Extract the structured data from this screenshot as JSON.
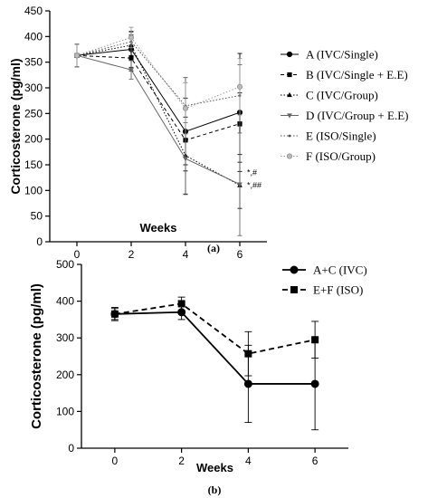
{
  "chart_data": [
    {
      "type": "line",
      "caption": "(a)",
      "xlabel": "Weeks",
      "ylabel": "Corticosterone (pg/ml)",
      "x": [
        0,
        2,
        4,
        6
      ],
      "xlim": [
        -1,
        7
      ],
      "ylim": [
        0,
        450
      ],
      "xticks": [
        "0",
        "2",
        "4",
        "6"
      ],
      "yticks": [
        "0",
        "50",
        "100",
        "150",
        "200",
        "250",
        "300",
        "350",
        "400",
        "450"
      ],
      "grid": false,
      "legend_position": "right",
      "series": [
        {
          "name": "A (IVC/Single)",
          "values": [
            363,
            375,
            215,
            252
          ],
          "err": [
            22,
            35,
            65,
            115
          ],
          "color": "#000000",
          "dash": "",
          "marker": "circle"
        },
        {
          "name": "B (IVC/Single + E.E)",
          "values": [
            363,
            358,
            198,
            230
          ],
          "err": [
            22,
            25,
            60,
            60
          ],
          "color": "#000000",
          "dash": "4,3",
          "marker": "square"
        },
        {
          "name": "C (IVC/Group)",
          "values": [
            363,
            383,
            168,
            110
          ],
          "err": [
            22,
            20,
            75,
            45
          ],
          "color": "#000000",
          "dash": "1.5,2",
          "marker": "triangle"
        },
        {
          "name": "D (IVC/Group + E.E)",
          "values": [
            363,
            335,
            162,
            112
          ],
          "err": [
            22,
            18,
            70,
            100
          ],
          "color": "#666666",
          "dash": "",
          "marker": "triangle-down"
        },
        {
          "name": "E (ISO/Single)",
          "values": [
            363,
            390,
            265,
            285
          ],
          "err": [
            22,
            18,
            55,
            60
          ],
          "color": "#555555",
          "dash": "1.5,2",
          "marker": "dot"
        },
        {
          "name": "F (ISO/Group)",
          "values": [
            363,
            398,
            260,
            302
          ],
          "err": [
            22,
            20,
            50,
            55
          ],
          "color": "#999999",
          "dash": "1.5,2",
          "marker": "circle-open"
        }
      ],
      "annotations": [
        {
          "text": "*,#",
          "x": 6,
          "y": 135
        },
        {
          "text": "*,##",
          "x": 6,
          "y": 110
        }
      ]
    },
    {
      "type": "line",
      "caption": "(b)",
      "xlabel": "Weeks",
      "ylabel": "Corticosterone (pg/ml)",
      "x": [
        0,
        2,
        4,
        6
      ],
      "xlim": [
        -1,
        7
      ],
      "ylim": [
        0,
        500
      ],
      "xticks": [
        "0",
        "2",
        "4",
        "6"
      ],
      "yticks": [
        "0",
        "100",
        "200",
        "300",
        "400",
        "500"
      ],
      "grid": false,
      "legend_position": "top-right",
      "series": [
        {
          "name": "A+C (IVC)",
          "values": [
            365,
            370,
            175,
            175
          ],
          "err": [
            15,
            20,
            105,
            125
          ],
          "color": "#000000",
          "dash": "",
          "marker": "circle"
        },
        {
          "name": "E+F (ISO)",
          "values": [
            365,
            393,
            257,
            295
          ],
          "err": [
            18,
            18,
            60,
            50
          ],
          "color": "#000000",
          "dash": "6,4",
          "marker": "square"
        }
      ]
    }
  ]
}
